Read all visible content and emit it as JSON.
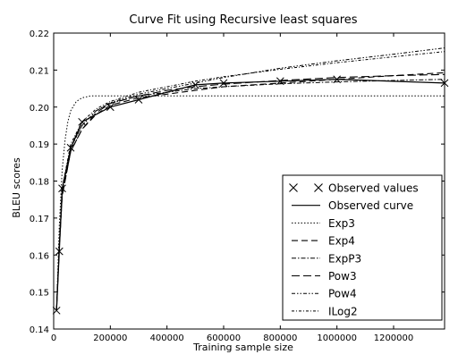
{
  "chart_data": {
    "type": "line",
    "title": "Curve Fit using Recursive least squares",
    "xlabel": "Training sample size",
    "ylabel": "BLEU scores",
    "xlim": [
      0,
      1380000
    ],
    "ylim": [
      0.14,
      0.22
    ],
    "xticks": [
      0,
      200000,
      400000,
      600000,
      800000,
      1000000,
      1200000
    ],
    "xtick_labels": [
      "0",
      "200000",
      "400000",
      "600000",
      "800000",
      "1000000",
      "1200000"
    ],
    "yticks": [
      0.14,
      0.15,
      0.16,
      0.17,
      0.18,
      0.19,
      0.2,
      0.21,
      0.22
    ],
    "ytick_labels": [
      "0.14",
      "0.15",
      "0.16",
      "0.17",
      "0.18",
      "0.19",
      "0.20",
      "0.21",
      "0.22"
    ],
    "grid": false,
    "legend_position": "lower-right",
    "series": [
      {
        "name": "Observed values",
        "style": "markers-x",
        "x": [
          10000,
          20000,
          30000,
          60000,
          100000,
          200000,
          300000,
          500000,
          600000,
          800000,
          1000000,
          1380000
        ],
        "y": [
          0.145,
          0.161,
          0.178,
          0.189,
          0.196,
          0.2,
          0.202,
          0.206,
          0.2065,
          0.207,
          0.2075,
          0.2065
        ]
      },
      {
        "name": "Observed curve",
        "style": "solid",
        "x": [
          10000,
          20000,
          30000,
          60000,
          100000,
          200000,
          300000,
          500000,
          600000,
          800000,
          1000000,
          1380000
        ],
        "y": [
          0.145,
          0.161,
          0.178,
          0.189,
          0.196,
          0.2,
          0.202,
          0.206,
          0.2065,
          0.207,
          0.2075,
          0.2065
        ]
      },
      {
        "name": "Exp3",
        "style": "dotted",
        "x": [
          10000,
          20000,
          30000,
          40000,
          50000,
          60000,
          80000,
          100000,
          130000,
          160000,
          200000,
          300000,
          500000,
          800000,
          1100000,
          1380000
        ],
        "y": [
          0.145,
          0.168,
          0.183,
          0.191,
          0.196,
          0.199,
          0.2015,
          0.2025,
          0.203,
          0.203,
          0.203,
          0.203,
          0.203,
          0.203,
          0.203,
          0.203
        ]
      },
      {
        "name": "Exp4",
        "style": "dashed",
        "x": [
          10000,
          20000,
          30000,
          60000,
          100000,
          150000,
          200000,
          300000,
          400000,
          500000,
          600000,
          800000,
          1000000,
          1200000,
          1380000
        ],
        "y": [
          0.145,
          0.162,
          0.176,
          0.188,
          0.194,
          0.198,
          0.2005,
          0.2025,
          0.2035,
          0.2045,
          0.2055,
          0.2065,
          0.2075,
          0.2085,
          0.2093
        ]
      },
      {
        "name": "ExpP3",
        "style": "dashdot",
        "x": [
          10000,
          20000,
          30000,
          60000,
          100000,
          150000,
          200000,
          300000,
          400000,
          500000,
          600000,
          800000,
          1000000,
          1200000,
          1380000
        ],
        "y": [
          0.145,
          0.163,
          0.177,
          0.189,
          0.195,
          0.199,
          0.201,
          0.203,
          0.204,
          0.205,
          0.2055,
          0.2063,
          0.2068,
          0.2072,
          0.2075
        ]
      },
      {
        "name": "Pow3",
        "style": "longdash",
        "x": [
          10000,
          20000,
          30000,
          60000,
          100000,
          150000,
          200000,
          300000,
          400000,
          500000,
          600000,
          800000,
          1000000,
          1200000,
          1380000
        ],
        "y": [
          0.145,
          0.162,
          0.176,
          0.188,
          0.194,
          0.1985,
          0.201,
          0.203,
          0.2045,
          0.2055,
          0.2062,
          0.2072,
          0.208,
          0.2085,
          0.2088
        ]
      },
      {
        "name": "Pow4",
        "style": "dashdotdot",
        "x": [
          10000,
          20000,
          30000,
          60000,
          100000,
          150000,
          200000,
          300000,
          400000,
          500000,
          600000,
          800000,
          1000000,
          1200000,
          1380000
        ],
        "y": [
          0.145,
          0.163,
          0.177,
          0.189,
          0.195,
          0.199,
          0.2012,
          0.2035,
          0.205,
          0.2065,
          0.208,
          0.2105,
          0.2125,
          0.2143,
          0.216
        ]
      },
      {
        "name": "ILog2",
        "style": "dashdot-fine",
        "x": [
          10000,
          20000,
          30000,
          60000,
          100000,
          150000,
          200000,
          300000,
          400000,
          500000,
          600000,
          800000,
          1000000,
          1200000,
          1380000
        ],
        "y": [
          0.145,
          0.164,
          0.178,
          0.19,
          0.196,
          0.1995,
          0.2015,
          0.204,
          0.2055,
          0.207,
          0.2082,
          0.2102,
          0.212,
          0.2136,
          0.215
        ]
      }
    ]
  }
}
